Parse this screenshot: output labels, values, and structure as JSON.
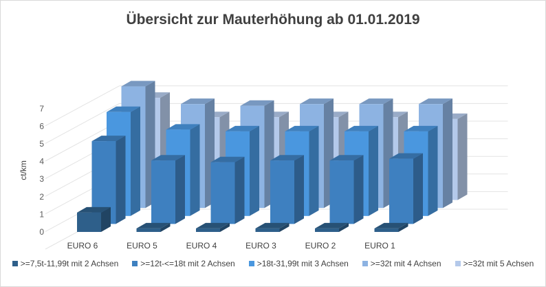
{
  "chart_data": {
    "type": "bar",
    "subtype": "3d-column",
    "title": "Übersicht zur Mauterhöhung ab 01.01.2019",
    "xlabel": "",
    "ylabel": "ct/km",
    "ylim": [
      0,
      7
    ],
    "yticks": [
      "0",
      "1",
      "2",
      "3",
      "4",
      "5",
      "6",
      "7"
    ],
    "categories": [
      "EURO 6",
      "EURO 5",
      "EURO 4",
      "EURO 3",
      "EURO 2",
      "EURO 1"
    ],
    "series": [
      {
        "name": ">=7,5t-11,99t mit 2 Achsen",
        "color": "#2e5f8a",
        "values": [
          1.1,
          0.2,
          0.2,
          0.2,
          0.2,
          0.2
        ]
      },
      {
        "name": ">=12t-<=18t mit 2 Achsen",
        "color": "#3e80c0",
        "values": [
          4.7,
          3.6,
          3.5,
          3.6,
          3.6,
          3.7
        ]
      },
      {
        "name": ">18t-31,99t mit 3 Achsen",
        "color": "#4a97df",
        "values": [
          5.9,
          4.9,
          4.8,
          4.8,
          4.8,
          4.8
        ]
      },
      {
        "name": ">=32t mit 4 Achsen",
        "color": "#8db3e2",
        "values": [
          6.9,
          5.9,
          5.8,
          5.9,
          5.9,
          5.9
        ]
      },
      {
        "name": ">=32t mit 5 Achsen",
        "color": "#b4c9ea",
        "values": [
          5.8,
          4.7,
          4.7,
          4.7,
          4.7,
          4.6
        ]
      }
    ],
    "grid": true,
    "legend": "bottom"
  }
}
